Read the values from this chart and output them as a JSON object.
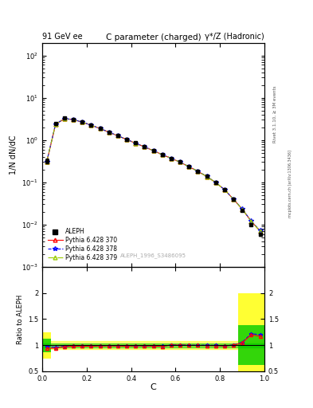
{
  "title_left": "91 GeV ee",
  "title_right": "γ*/Z (Hadronic)",
  "plot_title": "C parameter (charged)",
  "xlabel": "C",
  "ylabel_main": "1/N dN/dC",
  "ylabel_ratio": "Ratio to ALEPH",
  "watermark": "ALEPH_1996_S3486095",
  "rivet_label": "Rivet 3.1.10, ≥ 3M events",
  "mcplots_label": "mcplots.cern.ch [arXiv:1306.3436]",
  "x_centers": [
    0.02,
    0.06,
    0.1,
    0.14,
    0.18,
    0.22,
    0.26,
    0.3,
    0.34,
    0.38,
    0.42,
    0.46,
    0.5,
    0.54,
    0.58,
    0.62,
    0.66,
    0.7,
    0.74,
    0.78,
    0.82,
    0.86,
    0.9,
    0.94,
    0.98
  ],
  "aleph_y": [
    0.32,
    2.5,
    3.3,
    3.1,
    2.7,
    2.3,
    1.9,
    1.55,
    1.28,
    1.05,
    0.85,
    0.7,
    0.57,
    0.46,
    0.37,
    0.3,
    0.235,
    0.183,
    0.138,
    0.1,
    0.068,
    0.04,
    0.022,
    0.01,
    0.006
  ],
  "aleph_yerr": [
    0.04,
    0.12,
    0.12,
    0.1,
    0.09,
    0.07,
    0.06,
    0.05,
    0.04,
    0.03,
    0.025,
    0.02,
    0.016,
    0.013,
    0.01,
    0.008,
    0.007,
    0.005,
    0.004,
    0.003,
    0.002,
    0.0015,
    0.001,
    0.0006,
    0.0005
  ],
  "py370_y": [
    0.3,
    2.35,
    3.2,
    3.05,
    2.65,
    2.25,
    1.87,
    1.53,
    1.26,
    1.03,
    0.84,
    0.69,
    0.56,
    0.45,
    0.37,
    0.3,
    0.234,
    0.182,
    0.137,
    0.099,
    0.067,
    0.04,
    0.023,
    0.012,
    0.007
  ],
  "py378_y": [
    0.31,
    2.4,
    3.22,
    3.06,
    2.66,
    2.26,
    1.88,
    1.54,
    1.265,
    1.035,
    0.842,
    0.692,
    0.562,
    0.452,
    0.371,
    0.301,
    0.235,
    0.183,
    0.138,
    0.0995,
    0.0672,
    0.0401,
    0.0232,
    0.0122,
    0.0072
  ],
  "py379_y": [
    0.305,
    2.38,
    3.21,
    3.055,
    2.655,
    2.255,
    1.875,
    1.535,
    1.262,
    1.032,
    0.84,
    0.69,
    0.56,
    0.45,
    0.37,
    0.3,
    0.234,
    0.182,
    0.137,
    0.099,
    0.067,
    0.04,
    0.023,
    0.012,
    0.007
  ],
  "ratio_py370": [
    0.94,
    0.94,
    0.97,
    0.98,
    0.98,
    0.98,
    0.985,
    0.987,
    0.984,
    0.981,
    0.988,
    0.986,
    0.982,
    0.978,
    1.0,
    1.0,
    0.996,
    0.995,
    0.993,
    0.99,
    0.985,
    1.0,
    1.045,
    1.2,
    1.17
  ],
  "ratio_py378": [
    0.97,
    0.96,
    0.976,
    0.987,
    0.985,
    0.983,
    0.989,
    0.994,
    0.988,
    0.986,
    0.991,
    0.989,
    0.986,
    0.983,
    1.003,
    1.003,
    0.999,
    0.999,
    1.0,
    0.995,
    0.988,
    1.003,
    1.055,
    1.22,
    1.2
  ],
  "ratio_py379": [
    0.953,
    0.952,
    0.973,
    0.985,
    0.983,
    0.98,
    0.987,
    0.99,
    0.986,
    0.983,
    0.988,
    0.986,
    0.982,
    0.978,
    1.0,
    1.0,
    0.996,
    0.995,
    0.993,
    0.99,
    0.985,
    1.0,
    1.045,
    1.2,
    1.17
  ],
  "color_aleph": "#000000",
  "color_py370": "#ff0000",
  "color_py378": "#0000ff",
  "color_py379": "#99cc00",
  "color_band_yellow": "#ffff00",
  "color_band_green": "#00cc00",
  "bg_color": "#ffffff",
  "ylim_main": [
    0.001,
    200
  ],
  "ylim_ratio": [
    0.5,
    2.5
  ],
  "xlim": [
    0.0,
    1.0
  ]
}
